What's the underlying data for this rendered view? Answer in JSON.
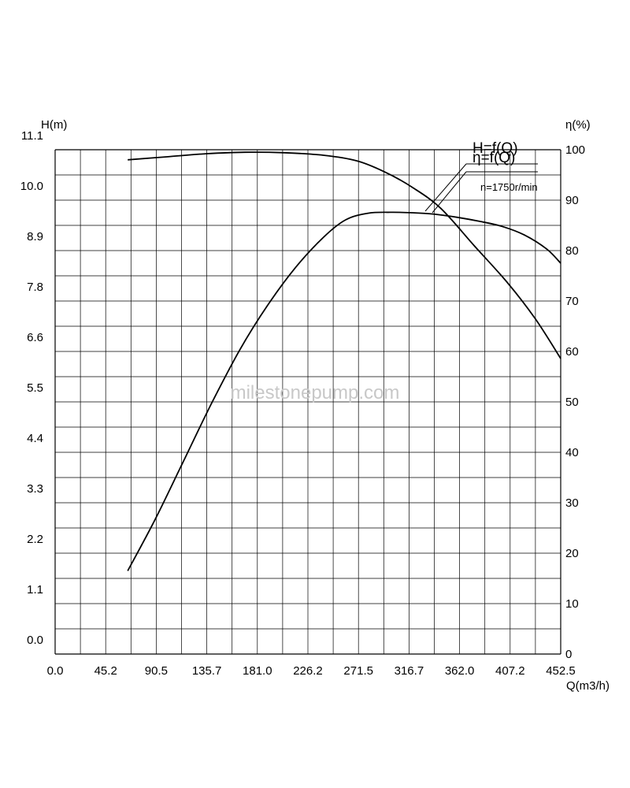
{
  "chart_data": {
    "type": "line",
    "left_axis_title": "H(m)",
    "right_axis_title": "η(%)",
    "x_axis_title": "Q(m3/h)",
    "x_tick_labels": [
      "0.0",
      "45.2",
      "90.5",
      "135.7",
      "181.0",
      "226.2",
      "271.5",
      "316.7",
      "362.0",
      "407.2",
      "452.5"
    ],
    "x_ticks": [
      0.0,
      45.2,
      90.5,
      135.7,
      181.0,
      226.2,
      271.5,
      316.7,
      362.0,
      407.2,
      452.5
    ],
    "xlim": [
      0.0,
      452.5
    ],
    "left_tick_labels": [
      "0.0",
      "1.1",
      "2.2",
      "3.3",
      "4.4",
      "5.5",
      "6.6",
      "7.8",
      "8.9",
      "10.0",
      "11.1"
    ],
    "left_ticks": [
      0.0,
      1.1,
      2.2,
      3.3,
      4.4,
      5.5,
      6.6,
      7.8,
      8.9,
      10.0,
      11.1
    ],
    "right_tick_labels": [
      "0",
      "10",
      "20",
      "30",
      "40",
      "50",
      "60",
      "70",
      "80",
      "90",
      "100"
    ],
    "right_ticks": [
      0,
      10,
      20,
      30,
      40,
      50,
      60,
      70,
      80,
      90,
      100
    ],
    "right_ylim": [
      0,
      100
    ],
    "grid": true,
    "series": [
      {
        "name": "H=f(Q)",
        "axis": "right",
        "x": [
          65,
          100,
          135,
          170,
          205,
          240,
          270,
          295,
          320,
          345,
          375,
          405,
          430,
          452.5
        ],
        "y": [
          98,
          98.6,
          99.2,
          99.5,
          99.4,
          98.9,
          97.8,
          95.6,
          92.5,
          88.4,
          81,
          73.6,
          66.4,
          58.6
        ]
      },
      {
        "name": "η=f(Q)",
        "axis": "right",
        "x": [
          65,
          90,
          115,
          140,
          165,
          190,
          215,
          240,
          260,
          280,
          300,
          320,
          340,
          360,
          380,
          400,
          420,
          440,
          452.5
        ],
        "y": [
          16.5,
          26.9,
          38.3,
          49.7,
          60.2,
          69.1,
          76.6,
          82.6,
          86.1,
          87.4,
          87.6,
          87.5,
          87.2,
          86.6,
          85.8,
          84.8,
          83.1,
          80.3,
          77.5
        ]
      }
    ],
    "annotation": "n=1750r/min",
    "watermark": "milestonepump.com"
  }
}
